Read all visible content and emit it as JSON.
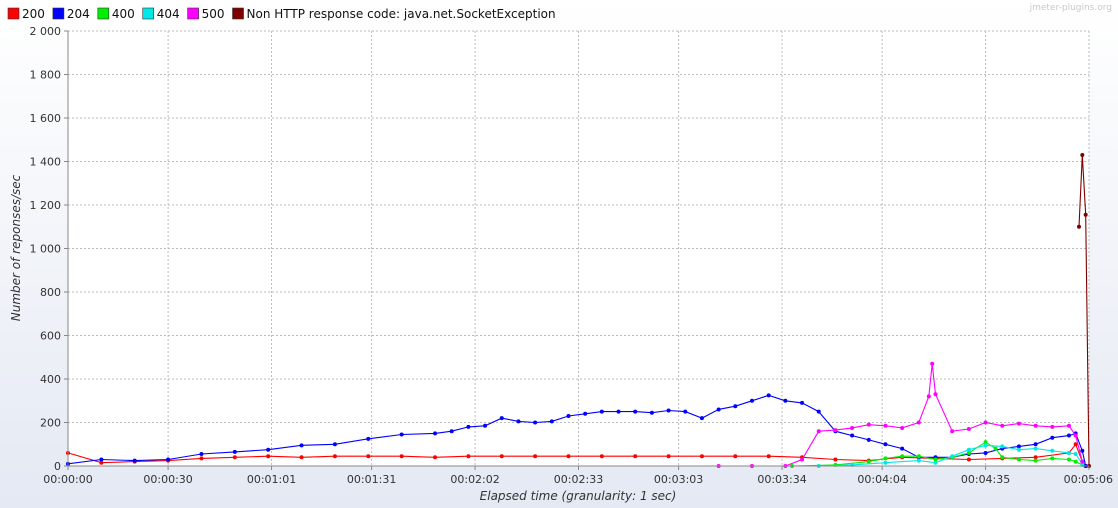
{
  "credit": "jmeter-plugins.org",
  "chart_data": {
    "type": "line",
    "xlabel": "Elapsed time (granularity: 1 sec)",
    "ylabel": "Number of reponses/sec",
    "ylim": [
      0,
      2000
    ],
    "xlim_sec": [
      0,
      306
    ],
    "y_ticks": [
      0,
      200,
      400,
      600,
      800,
      1000,
      1200,
      1400,
      1600,
      1800,
      2000
    ],
    "y_tick_labels": [
      "0",
      "200",
      "400",
      "600",
      "800",
      "1 000",
      "1 200",
      "1 400",
      "1 600",
      "1 800",
      "2 000"
    ],
    "x_ticks_sec": [
      0,
      30,
      61,
      91,
      122,
      153,
      183,
      214,
      244,
      275,
      306
    ],
    "x_tick_labels": [
      "00:00:00",
      "00:00:30",
      "00:01:01",
      "00:01:31",
      "00:02:02",
      "00:02:33",
      "00:03:03",
      "00:03:34",
      "00:04:04",
      "00:04:35",
      "00:05:06"
    ],
    "grid": true,
    "legend_position": "top-left",
    "series": [
      {
        "name": "200",
        "color": "#ff0000",
        "points": [
          [
            0,
            60
          ],
          [
            10,
            15
          ],
          [
            20,
            20
          ],
          [
            30,
            25
          ],
          [
            40,
            35
          ],
          [
            50,
            40
          ],
          [
            60,
            45
          ],
          [
            70,
            40
          ],
          [
            80,
            45
          ],
          [
            90,
            45
          ],
          [
            100,
            45
          ],
          [
            110,
            40
          ],
          [
            120,
            45
          ],
          [
            130,
            45
          ],
          [
            140,
            45
          ],
          [
            150,
            45
          ],
          [
            160,
            45
          ],
          [
            170,
            45
          ],
          [
            180,
            45
          ],
          [
            190,
            45
          ],
          [
            200,
            45
          ],
          [
            210,
            45
          ],
          [
            220,
            40
          ],
          [
            230,
            30
          ],
          [
            240,
            25
          ],
          [
            250,
            40
          ],
          [
            260,
            35
          ],
          [
            270,
            30
          ],
          [
            280,
            35
          ],
          [
            290,
            40
          ],
          [
            300,
            60
          ],
          [
            302,
            100
          ],
          [
            304,
            20
          ],
          [
            305,
            0
          ]
        ]
      },
      {
        "name": "204",
        "color": "#0000ff",
        "points": [
          [
            0,
            10
          ],
          [
            10,
            30
          ],
          [
            20,
            25
          ],
          [
            30,
            30
          ],
          [
            40,
            55
          ],
          [
            50,
            65
          ],
          [
            60,
            75
          ],
          [
            70,
            95
          ],
          [
            80,
            100
          ],
          [
            90,
            125
          ],
          [
            100,
            145
          ],
          [
            110,
            150
          ],
          [
            115,
            160
          ],
          [
            120,
            180
          ],
          [
            125,
            185
          ],
          [
            130,
            220
          ],
          [
            135,
            205
          ],
          [
            140,
            200
          ],
          [
            145,
            205
          ],
          [
            150,
            230
          ],
          [
            155,
            240
          ],
          [
            160,
            250
          ],
          [
            165,
            250
          ],
          [
            170,
            250
          ],
          [
            175,
            245
          ],
          [
            180,
            255
          ],
          [
            185,
            250
          ],
          [
            190,
            220
          ],
          [
            195,
            260
          ],
          [
            200,
            275
          ],
          [
            205,
            300
          ],
          [
            210,
            325
          ],
          [
            215,
            300
          ],
          [
            220,
            290
          ],
          [
            225,
            250
          ],
          [
            230,
            160
          ],
          [
            235,
            140
          ],
          [
            240,
            120
          ],
          [
            245,
            100
          ],
          [
            250,
            80
          ],
          [
            255,
            40
          ],
          [
            260,
            40
          ],
          [
            265,
            40
          ],
          [
            270,
            55
          ],
          [
            275,
            60
          ],
          [
            280,
            80
          ],
          [
            285,
            90
          ],
          [
            290,
            100
          ],
          [
            295,
            130
          ],
          [
            300,
            140
          ],
          [
            302,
            150
          ],
          [
            304,
            70
          ],
          [
            305,
            0
          ]
        ]
      },
      {
        "name": "400",
        "color": "#00ee00",
        "points": [
          [
            217,
            0
          ],
          [
            230,
            5
          ],
          [
            240,
            20
          ],
          [
            245,
            35
          ],
          [
            250,
            45
          ],
          [
            255,
            45
          ],
          [
            260,
            30
          ],
          [
            265,
            40
          ],
          [
            270,
            60
          ],
          [
            275,
            110
          ],
          [
            278,
            80
          ],
          [
            280,
            40
          ],
          [
            285,
            30
          ],
          [
            290,
            25
          ],
          [
            295,
            35
          ],
          [
            300,
            30
          ],
          [
            302,
            20
          ],
          [
            304,
            5
          ]
        ]
      },
      {
        "name": "404",
        "color": "#00e8e8",
        "points": [
          [
            225,
            0
          ],
          [
            235,
            5
          ],
          [
            245,
            15
          ],
          [
            255,
            25
          ],
          [
            260,
            15
          ],
          [
            265,
            45
          ],
          [
            270,
            75
          ],
          [
            275,
            95
          ],
          [
            280,
            90
          ],
          [
            285,
            75
          ],
          [
            290,
            80
          ],
          [
            295,
            70
          ],
          [
            300,
            60
          ],
          [
            302,
            55
          ],
          [
            304,
            10
          ]
        ]
      },
      {
        "name": "500",
        "color": "#ff00ff",
        "points": [
          [
            195,
            0
          ],
          [
            205,
            0
          ],
          [
            215,
            0
          ],
          [
            220,
            30
          ],
          [
            225,
            160
          ],
          [
            230,
            165
          ],
          [
            235,
            175
          ],
          [
            240,
            190
          ],
          [
            245,
            185
          ],
          [
            250,
            175
          ],
          [
            255,
            200
          ],
          [
            258,
            320
          ],
          [
            259,
            470
          ],
          [
            260,
            330
          ],
          [
            265,
            160
          ],
          [
            270,
            170
          ],
          [
            275,
            200
          ],
          [
            280,
            185
          ],
          [
            285,
            195
          ],
          [
            290,
            185
          ],
          [
            295,
            180
          ],
          [
            300,
            185
          ],
          [
            302,
            140
          ],
          [
            304,
            20
          ]
        ]
      },
      {
        "name": "Non HTTP response code: java.net.SocketException",
        "color": "#800000",
        "points": [
          [
            303,
            1100
          ],
          [
            304,
            1430
          ],
          [
            305,
            1155
          ],
          [
            306,
            0
          ]
        ]
      }
    ]
  }
}
